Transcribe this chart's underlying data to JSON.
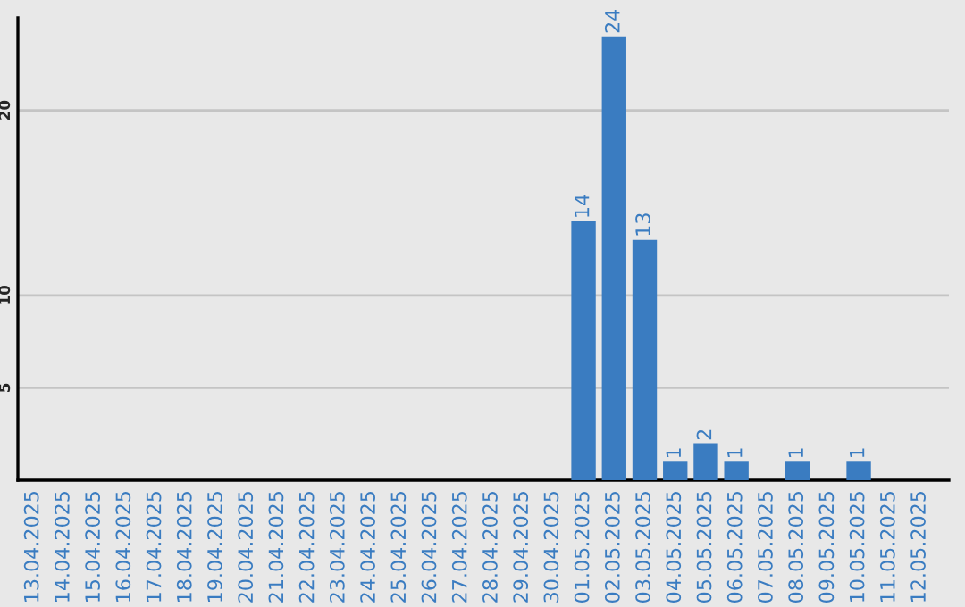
{
  "chart_data": {
    "type": "bar",
    "categories": [
      "13.04.2025",
      "14.04.2025",
      "15.04.2025",
      "16.04.2025",
      "17.04.2025",
      "18.04.2025",
      "19.04.2025",
      "20.04.2025",
      "21.04.2025",
      "22.04.2025",
      "23.04.2025",
      "24.04.2025",
      "25.04.2025",
      "26.04.2025",
      "27.04.2025",
      "28.04.2025",
      "29.04.2025",
      "30.04.2025",
      "01.05.2025",
      "02.05.2025",
      "03.05.2025",
      "04.05.2025",
      "05.05.2025",
      "06.05.2025",
      "07.05.2025",
      "08.05.2025",
      "09.05.2025",
      "10.05.2025",
      "11.05.2025",
      "12.05.2025"
    ],
    "values": [
      0,
      0,
      0,
      0,
      0,
      0,
      0,
      0,
      0,
      0,
      0,
      0,
      0,
      0,
      0,
      0,
      0,
      0,
      14,
      24,
      13,
      1,
      2,
      1,
      0,
      1,
      0,
      1,
      0,
      0
    ],
    "value_labels": [
      null,
      null,
      null,
      null,
      null,
      null,
      null,
      null,
      null,
      null,
      null,
      null,
      null,
      null,
      null,
      null,
      null,
      null,
      "14",
      "24",
      "13",
      "1",
      "2",
      "1",
      null,
      "1",
      null,
      "1",
      null,
      null
    ],
    "color": "#3a7cc1",
    "ylim": [
      0,
      25
    ],
    "yticks": [
      5,
      10,
      20
    ],
    "grid": "y"
  }
}
